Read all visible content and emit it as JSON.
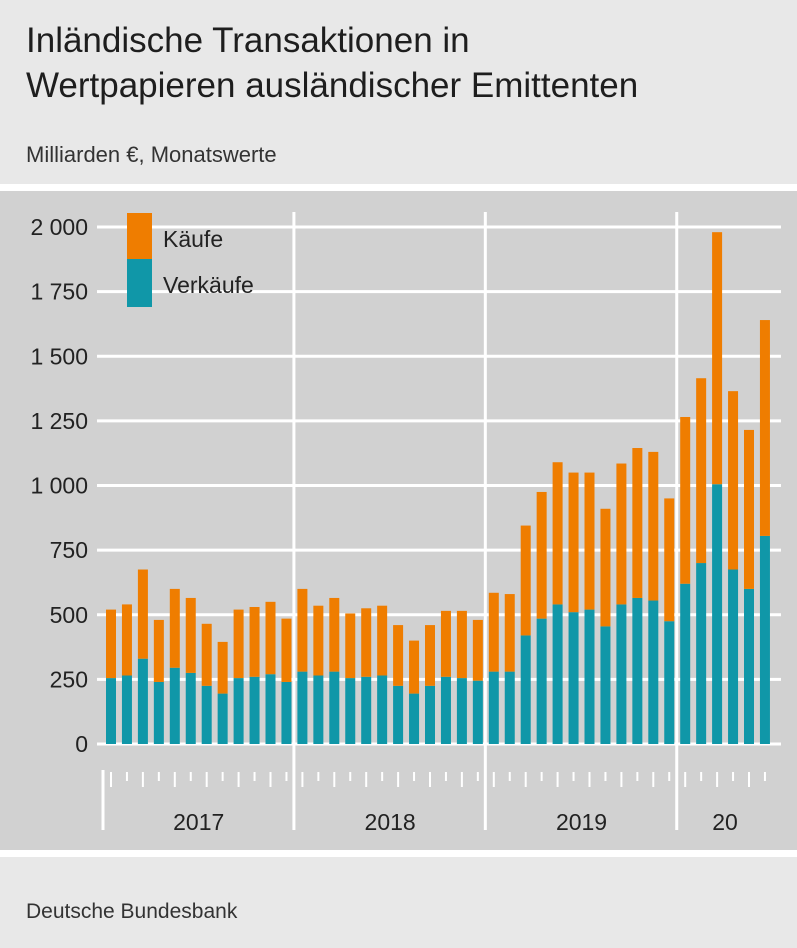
{
  "title_line1": "Inländische Transaktionen in",
  "title_line2": "Wertpapieren ausländischer Emittenten",
  "subtitle": "Milliarden €, Monatswerte",
  "source": "Deutsche Bundesbank",
  "colors": {
    "kaeufe": "#ef7d00",
    "verkaeufe": "#1097a8",
    "grid": "#ffffff",
    "plot_bg": "#d1d1d1"
  },
  "chart_data": {
    "type": "bar",
    "stacked": true,
    "title": "Inländische Transaktionen in Wertpapieren ausländischer Emittenten",
    "ylabel": "Milliarden €, Monatswerte",
    "ylim": [
      0,
      2000
    ],
    "yticks": [
      0,
      250,
      500,
      750,
      1000,
      1250,
      1500,
      1750,
      2000
    ],
    "ytick_labels": [
      "0",
      "250",
      "500",
      "750",
      "1 000",
      "1 250",
      "1 500",
      "1 750",
      "2 000"
    ],
    "year_labels": [
      {
        "label": "2017",
        "start": 0,
        "months": 12
      },
      {
        "label": "2018",
        "start": 12,
        "months": 12
      },
      {
        "label": "2019",
        "start": 24,
        "months": 12
      },
      {
        "label": "20",
        "start": 36,
        "months": 6
      }
    ],
    "categories": [
      "2017-01",
      "2017-02",
      "2017-03",
      "2017-04",
      "2017-05",
      "2017-06",
      "2017-07",
      "2017-08",
      "2017-09",
      "2017-10",
      "2017-11",
      "2017-12",
      "2018-01",
      "2018-02",
      "2018-03",
      "2018-04",
      "2018-05",
      "2018-06",
      "2018-07",
      "2018-08",
      "2018-09",
      "2018-10",
      "2018-11",
      "2018-12",
      "2019-01",
      "2019-02",
      "2019-03",
      "2019-04",
      "2019-05",
      "2019-06",
      "2019-07",
      "2019-08",
      "2019-09",
      "2019-10",
      "2019-11",
      "2019-12",
      "2020-01",
      "2020-02",
      "2020-03",
      "2020-04",
      "2020-05",
      "2020-06"
    ],
    "series": [
      {
        "name": "Verkäufe",
        "values": [
          255,
          265,
          330,
          240,
          295,
          275,
          225,
          195,
          255,
          260,
          270,
          240,
          280,
          265,
          280,
          255,
          260,
          265,
          225,
          195,
          225,
          260,
          255,
          245,
          280,
          280,
          420,
          485,
          540,
          510,
          520,
          455,
          540,
          565,
          555,
          475,
          620,
          700,
          1005,
          675,
          600,
          805
        ]
      },
      {
        "name": "Käufe",
        "values": [
          265,
          275,
          345,
          240,
          305,
          290,
          240,
          200,
          265,
          270,
          280,
          245,
          320,
          270,
          285,
          250,
          265,
          270,
          235,
          205,
          235,
          255,
          260,
          235,
          305,
          300,
          425,
          490,
          550,
          540,
          530,
          455,
          545,
          580,
          575,
          475,
          645,
          715,
          975,
          690,
          615,
          835
        ]
      }
    ],
    "legend": [
      "Käufe",
      "Verkäufe"
    ]
  }
}
